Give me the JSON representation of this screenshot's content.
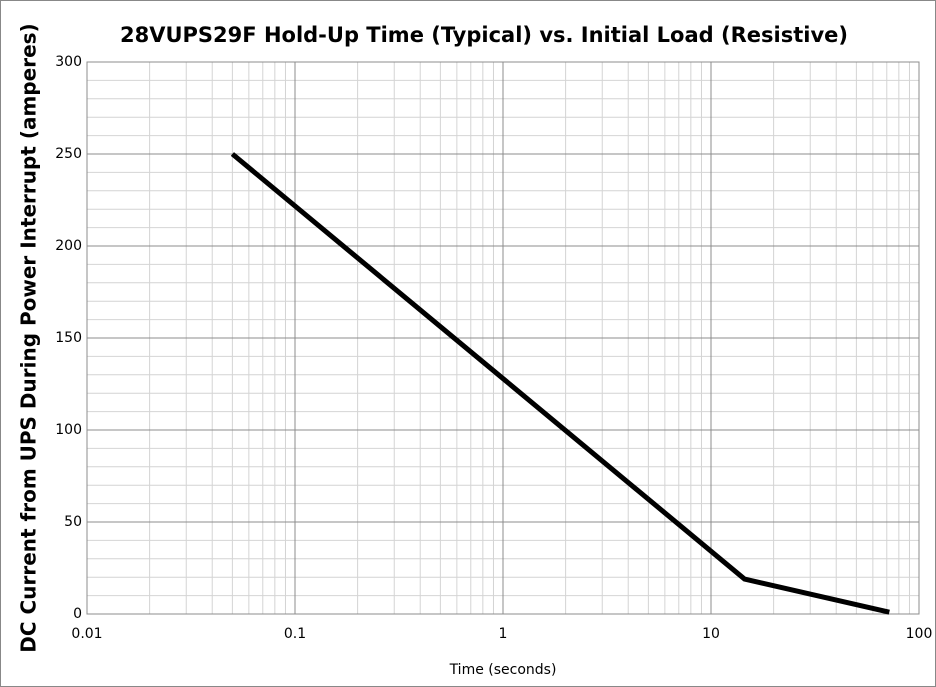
{
  "chart_data": {
    "type": "line",
    "title": "28VUPS29F Hold-Up Time (Typical) vs. Initial Load (Resistive)",
    "xlabel": "Time (seconds)",
    "ylabel": "DC Current from UPS During Power Interrupt (amperes)",
    "x": [
      0.05,
      14.5,
      72
    ],
    "values": [
      250,
      19,
      1
    ],
    "color": "#000000",
    "xscale": "log",
    "xlim": [
      0.01,
      100
    ],
    "xticks": [
      0.01,
      0.1,
      1,
      10,
      100
    ],
    "ylim": [
      0,
      300
    ],
    "yticks": [
      0,
      50,
      100,
      150,
      200,
      250,
      300
    ],
    "grid": true
  }
}
